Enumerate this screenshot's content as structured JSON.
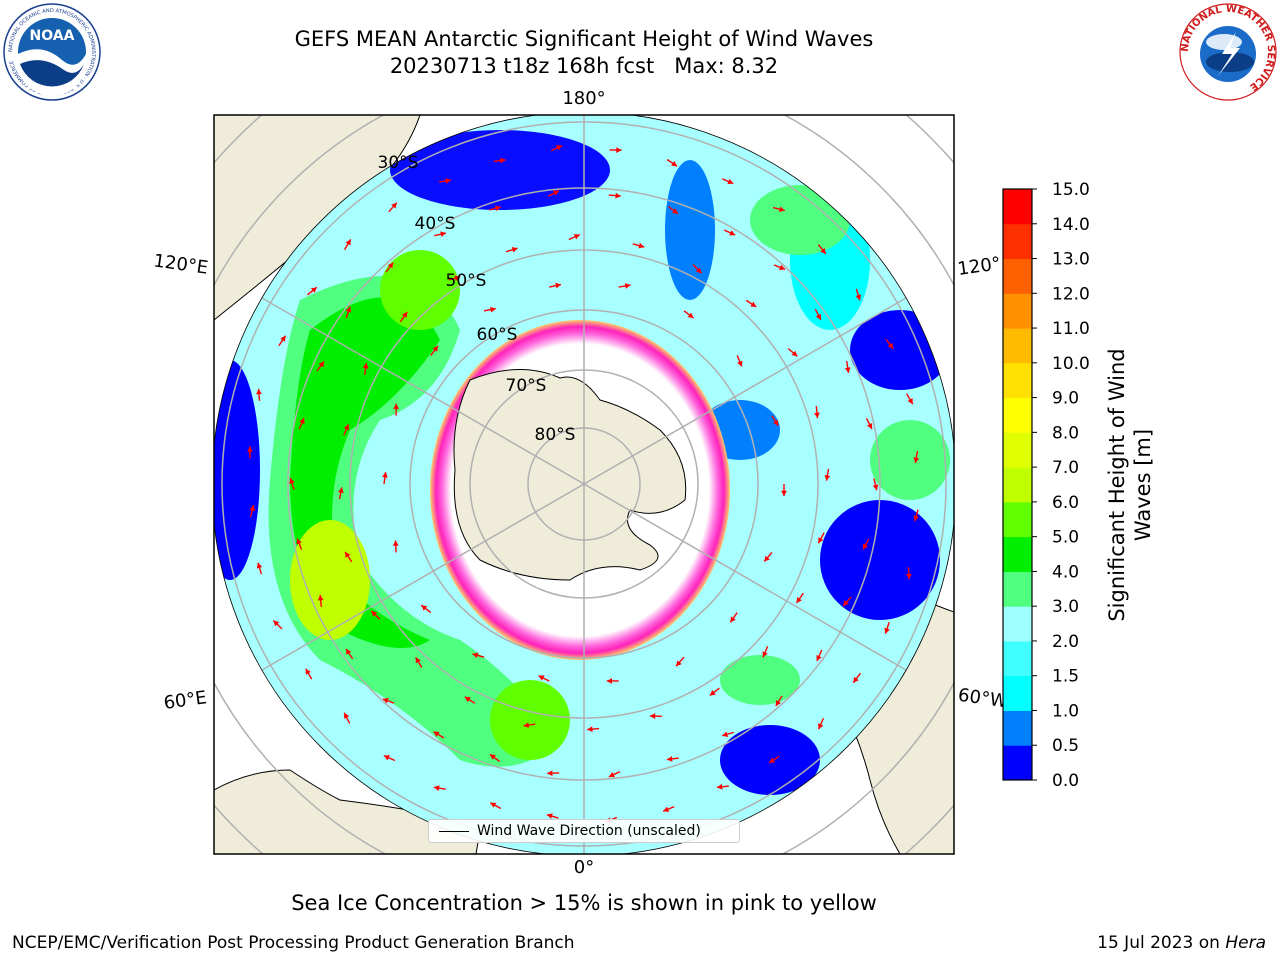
{
  "title": {
    "line1": "GEFS MEAN Antarctic Significant Height of Wind Waves",
    "line2": "20230713 t18z 168h fcst   Max: 8.32"
  },
  "logos": {
    "noaa_text": "NOAA",
    "noaa_ring": "NATIONAL OCEANIC AND ATMOSPHERIC ADMINISTRATION · U.S. DEPARTMENT OF COMMERCE",
    "nws_ring": "NATIONAL WEATHER SERVICE"
  },
  "map": {
    "projection": "south-polar-stereographic",
    "lon_labels": [
      "180°",
      "120°E",
      "120°",
      "60°E",
      "60°W",
      "0°"
    ],
    "lat_labels": [
      "30°S",
      "40°S",
      "50°S",
      "60°S",
      "70°S",
      "80°S"
    ],
    "colors": {
      "land": "#efedda",
      "ice_interior": "#ffffff",
      "ice_edge": "#ff33cc",
      "arrow": "#ff0000",
      "grid": "#b0b0b0"
    }
  },
  "legend": {
    "label": "Wind Wave Direction (unscaled)"
  },
  "colorbar": {
    "label": "Significant Height of Wind Waves [m]",
    "label_line1": "Significant Height of Wind",
    "label_line2": "Waves [m]",
    "ticks": [
      "0.0",
      "0.5",
      "1.0",
      "1.5",
      "2.0",
      "3.0",
      "4.0",
      "5.0",
      "6.0",
      "7.0",
      "8.0",
      "9.0",
      "10.0",
      "11.0",
      "12.0",
      "13.0",
      "14.0",
      "15.0"
    ],
    "colors": [
      "#0000ff",
      "#0080ff",
      "#00ffff",
      "#40ffff",
      "#a0ffff",
      "#50ff80",
      "#00ee00",
      "#60ff00",
      "#c0ff00",
      "#e0ff00",
      "#ffff00",
      "#ffe000",
      "#ffbb00",
      "#ff9000",
      "#ff6000",
      "#ff3000",
      "#ff0000"
    ]
  },
  "caption": "Sea Ice Concentration > 15% is shown in pink to yellow",
  "footer": {
    "credit": "NCEP/EMC/Verification Post Processing Product Generation Branch",
    "date": "15 Jul 2023 on ",
    "host": "Hera"
  }
}
